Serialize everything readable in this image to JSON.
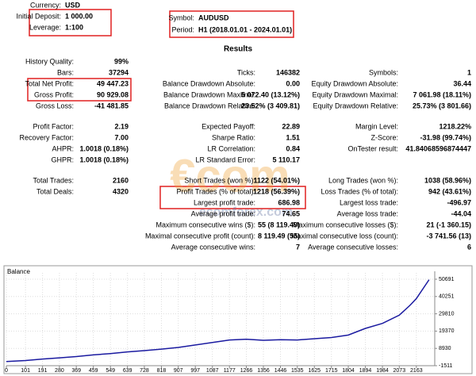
{
  "header": {
    "left": [
      {
        "label": "Currency:",
        "value": "USD"
      },
      {
        "label": "Initial Deposit:",
        "value": "1 000.00"
      },
      {
        "label": "Leverage:",
        "value": "1:100"
      }
    ],
    "right": [
      {
        "label": "Symbol:",
        "value": "AUDUSD"
      },
      {
        "label": "Period:",
        "value": "H1 (2018.01.01 - 2024.01.01)"
      }
    ]
  },
  "results_title": "Results",
  "watermark": {
    "logo": "€com",
    "url": "ecomforex.com"
  },
  "groups": [
    {
      "rows": [
        {
          "left": {
            "label": "History Quality:",
            "value": "99%"
          }
        },
        {
          "left": {
            "label": "Bars:",
            "value": "37294"
          },
          "middle": {
            "label": "Ticks:",
            "value": "146382"
          },
          "right": {
            "label": "Symbols:",
            "value": "1"
          }
        },
        {
          "left": {
            "label": "Total Net Profit:",
            "value": "49 447.23"
          },
          "middle": {
            "label": "Balance Drawdown Absolute:",
            "value": "0.00"
          },
          "right": {
            "label": "Equity Drawdown Absolute:",
            "value": "36.44"
          }
        },
        {
          "left": {
            "label": "Gross Profit:",
            "value": "90 929.08"
          },
          "middle": {
            "label": "Balance Drawdown Maximal:",
            "value": "5 072.40 (13.12%)"
          },
          "right": {
            "label": "Equity Drawdown Maximal:",
            "value": "7 061.98 (18.11%)"
          }
        },
        {
          "left": {
            "label": "Gross Loss:",
            "value": "-41 481.85"
          },
          "middle": {
            "label": "Balance Drawdown Relative:",
            "value": "23.52% (3 409.81)"
          },
          "right": {
            "label": "Equity Drawdown Relative:",
            "value": "25.73% (3 801.66)"
          }
        }
      ]
    },
    {
      "rows": [
        {
          "left": {
            "label": "Profit Factor:",
            "value": "2.19"
          },
          "middle": {
            "label": "Expected Payoff:",
            "value": "22.89"
          },
          "right": {
            "label": "Margin Level:",
            "value": "1218.22%"
          }
        },
        {
          "left": {
            "label": "Recovery Factor:",
            "value": "7.00"
          },
          "middle": {
            "label": "Sharpe Ratio:",
            "value": "1.51"
          },
          "right": {
            "label": "Z-Score:",
            "value": "-31.98 (99.74%)"
          }
        },
        {
          "left": {
            "label": "AHPR:",
            "value": "1.0018 (0.18%)"
          },
          "middle": {
            "label": "LR Correlation:",
            "value": "0.84"
          },
          "right": {
            "label": "OnTester result:",
            "value": "41.84068596874447"
          }
        },
        {
          "left": {
            "label": "GHPR:",
            "value": "1.0018 (0.18%)"
          },
          "middle": {
            "label": "LR Standard Error:",
            "value": "5 110.17"
          }
        }
      ]
    },
    {
      "rows": [
        {
          "left": {
            "label": "Total Trades:",
            "value": "2160"
          },
          "middle": {
            "label": "Short Trades (won %):",
            "value": "1122 (54.01%)"
          },
          "right": {
            "label": "Long Trades (won %):",
            "value": "1038 (58.96%)"
          }
        },
        {
          "left": {
            "label": "Total Deals:",
            "value": "4320"
          },
          "middle": {
            "label": "Profit Trades (% of total):",
            "value": "1218 (56.39%)"
          },
          "right": {
            "label": "Loss Trades (% of total):",
            "value": "942 (43.61%)"
          }
        },
        {
          "middle": {
            "label": "Largest profit trade:",
            "value": "686.98"
          },
          "right": {
            "label": "Largest loss trade:",
            "value": "-496.97"
          }
        },
        {
          "middle": {
            "label": "Average profit trade:",
            "value": "74.65"
          },
          "right": {
            "label": "Average loss trade:",
            "value": "-44.04"
          }
        },
        {
          "middle": {
            "label": "Maximum consecutive wins ($):",
            "value": "55 (8 119.49)"
          },
          "right": {
            "label": "Maximum consecutive losses ($):",
            "value": "21 (-1 360.15)"
          }
        },
        {
          "middle": {
            "label": "Maximal consecutive profit (count):",
            "value": "8 119.49 (55)"
          },
          "right": {
            "label": "Maximal consecutive loss (count):",
            "value": "-3 741.56 (13)"
          }
        },
        {
          "middle": {
            "label": "Average consecutive wins:",
            "value": "7"
          },
          "right": {
            "label": "Average consecutive losses:",
            "value": "6"
          }
        }
      ]
    }
  ],
  "chart_data": {
    "type": "line",
    "title": "Balance",
    "x": [
      0,
      101,
      191,
      280,
      369,
      459,
      549,
      639,
      728,
      818,
      907,
      997,
      1087,
      1177,
      1266,
      1356,
      1446,
      1535,
      1625,
      1715,
      1804,
      1894,
      1984,
      2073,
      2130,
      2163,
      2230
    ],
    "values": [
      1000,
      1600,
      2500,
      3200,
      4000,
      5000,
      5800,
      6800,
      7600,
      8500,
      9500,
      11000,
      12500,
      14000,
      14500,
      13800,
      14200,
      14000,
      14800,
      15500,
      17000,
      21000,
      24000,
      29000,
      35000,
      39000,
      50400
    ],
    "color": "#1a1aa0",
    "xlim": [
      0,
      2260
    ],
    "ylim": [
      -1511,
      50691
    ],
    "xticks": [
      0,
      101,
      191,
      280,
      369,
      459,
      549,
      639,
      728,
      818,
      907,
      997,
      1087,
      1177,
      1266,
      1356,
      1446,
      1535,
      1625,
      1715,
      1804,
      1894,
      1984,
      2073,
      2163
    ],
    "yticks": [
      -1511,
      8930,
      19370,
      29810,
      40251,
      50691
    ],
    "grid": true
  }
}
